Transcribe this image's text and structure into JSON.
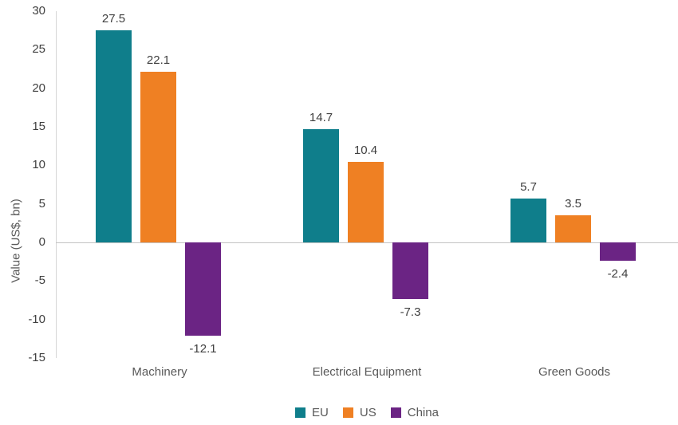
{
  "chart_data": {
    "type": "bar",
    "ylabel": "Value (US$, bn)",
    "xlabel": "",
    "categories": [
      "Machinery",
      "Electrical Equipment",
      "Green Goods"
    ],
    "series": [
      {
        "name": "EU",
        "color": "#0F7E8B",
        "values": [
          27.5,
          14.7,
          5.7
        ]
      },
      {
        "name": "US",
        "color": "#EF8023",
        "values": [
          22.1,
          10.4,
          3.5
        ]
      },
      {
        "name": "China",
        "color": "#6B2484",
        "values": [
          -12.1,
          -7.3,
          -2.4
        ]
      }
    ],
    "ylim": [
      -15,
      30
    ],
    "yticks": [
      30,
      25,
      20,
      15,
      10,
      5,
      0,
      -5,
      -10,
      -15
    ],
    "grid": false,
    "legend_position": "bottom",
    "value_label_decimals": 1,
    "colors": {
      "tick_label": "#3f3f3f",
      "value_label": "#3f3f3f",
      "category_label": "#595959",
      "axis_title": "#595959",
      "axis_line": "#d6d6d6",
      "zero_line": "#c3c3c3",
      "background": "#ffffff"
    }
  }
}
